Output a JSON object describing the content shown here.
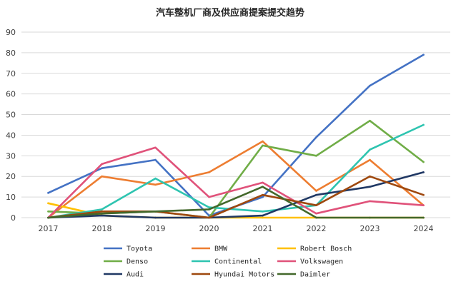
{
  "chart_data": {
    "type": "line",
    "title": "汽车整机厂商及供应商提案提交趋势",
    "xlabel": "",
    "ylabel": "",
    "ylim": [
      0,
      90
    ],
    "yticks": [
      0,
      10,
      20,
      30,
      40,
      50,
      60,
      70,
      80,
      90
    ],
    "grid": true,
    "legend_position": "bottom",
    "categories": [
      "2017",
      "2018",
      "2019",
      "2020",
      "2021",
      "2022",
      "2023",
      "2024"
    ],
    "series": [
      {
        "name": "Toyota",
        "color": "#4472c4",
        "values": [
          12,
          24,
          28,
          1,
          10,
          39,
          64,
          79
        ]
      },
      {
        "name": "BMW",
        "color": "#ed7d31",
        "values": [
          0,
          20,
          16,
          22,
          37,
          13,
          28,
          6
        ]
      },
      {
        "name": "Robert Bosch",
        "color": "#ffc000",
        "values": [
          7,
          1,
          0,
          0,
          0,
          0,
          0,
          0
        ]
      },
      {
        "name": "Denso",
        "color": "#70ad47",
        "values": [
          3,
          2,
          3,
          0,
          35,
          30,
          47,
          27
        ]
      },
      {
        "name": "Continental",
        "color": "#2ec4b0",
        "values": [
          0,
          4,
          19,
          5,
          3,
          6,
          33,
          45
        ]
      },
      {
        "name": "Volkswagen",
        "color": "#e0527a",
        "values": [
          0,
          26,
          34,
          10,
          17,
          2,
          8,
          6
        ]
      },
      {
        "name": "Audi",
        "color": "#203864",
        "values": [
          0,
          1,
          0,
          0,
          1,
          11,
          15,
          22
        ]
      },
      {
        "name": "Hyundai Motors",
        "color": "#9e480e",
        "values": [
          0,
          3,
          3,
          0,
          11,
          6,
          20,
          11
        ]
      },
      {
        "name": "Daimler",
        "color": "#43682b",
        "values": [
          0,
          2,
          3,
          4,
          15,
          0,
          0,
          0
        ]
      }
    ]
  }
}
